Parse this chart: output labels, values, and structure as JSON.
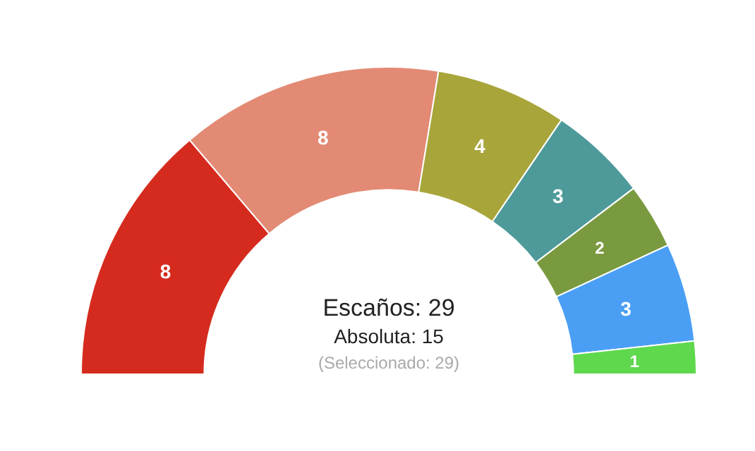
{
  "chart_data": {
    "type": "donut",
    "categories": [
      null,
      null,
      null,
      null,
      null,
      null,
      null
    ],
    "values": [
      8,
      8,
      4,
      3,
      2,
      3,
      1
    ],
    "colors": [
      "#d52b1e",
      "#e38a75",
      "#a8a53a",
      "#4e9a9a",
      "#7a9a40",
      "#4a9ff5",
      "#5fd84e"
    ],
    "data_labels": true,
    "annotations": [
      "Escaños: 29",
      "Absoluta: 15",
      "(Seleccionado: 29)"
    ]
  }
}
